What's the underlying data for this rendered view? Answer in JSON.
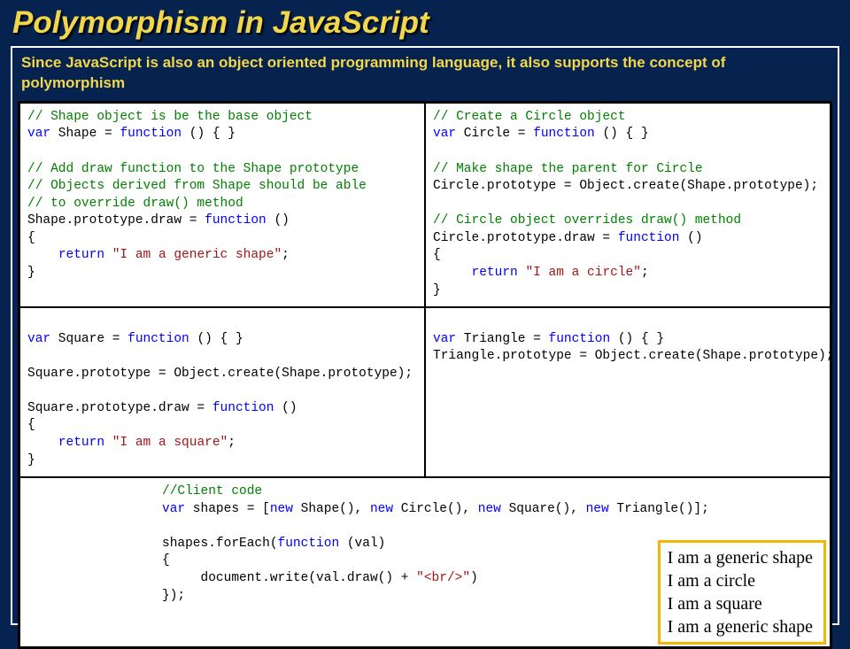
{
  "title": "Polymorphism in JavaScript",
  "subtitle": "Since JavaScript is also an object oriented programming language, it also supports the concept of polymorphism",
  "colors": {
    "background": "#062350",
    "accent": "#f2d74a",
    "frame_border": "#ffffff",
    "cell_bg": "#ffffff",
    "cell_border": "#000000",
    "comment": "#008000",
    "keyword": "#0000ff",
    "string": "#a31515",
    "output_border": "#f2b705"
  },
  "code": {
    "tl": {
      "l1": "// Shape object is be the base object",
      "l2a": "var",
      "l2b": " Shape = ",
      "l2c": "function",
      "l2d": " () { }",
      "l3": "",
      "l4": "// Add draw function to the Shape prototype",
      "l5": "// Objects derived from Shape should be able",
      "l6": "// to override draw() method",
      "l7a": "Shape.prototype.draw = ",
      "l7b": "function",
      "l7c": " ()",
      "l8": "{",
      "l9a": "    ",
      "l9b": "return",
      "l9c": " ",
      "l9d": "\"I am a generic shape\"",
      "l9e": ";",
      "l10": "}"
    },
    "tr": {
      "l1": "// Create a Circle object",
      "l2a": "var",
      "l2b": " Circle = ",
      "l2c": "function",
      "l2d": " () { }",
      "l3": "",
      "l4": "// Make shape the parent for Circle",
      "l5": "Circle.prototype = Object.create(Shape.prototype);",
      "l6": "",
      "l7": "// Circle object overrides draw() method",
      "l8a": "Circle.prototype.draw = ",
      "l8b": "function",
      "l8c": " ()",
      "l9": "{",
      "l10a": "     ",
      "l10b": "return",
      "l10c": " ",
      "l10d": "\"I am a circle\"",
      "l10e": ";",
      "l11": "}"
    },
    "bl": {
      "l0": "",
      "l1a": "var",
      "l1b": " Square = ",
      "l1c": "function",
      "l1d": " () { }",
      "l2": "",
      "l3": "Square.prototype = Object.create(Shape.prototype);",
      "l4": "",
      "l5a": "Square.prototype.draw = ",
      "l5b": "function",
      "l5c": " ()",
      "l6": "{",
      "l7a": "    ",
      "l7b": "return",
      "l7c": " ",
      "l7d": "\"I am a square\"",
      "l7e": ";",
      "l8": "}"
    },
    "br": {
      "l0": "",
      "l1a": "var",
      "l1b": " Triangle = ",
      "l1c": "function",
      "l1d": " () { }",
      "l2": "Triangle.prototype = Object.create(Shape.prototype);"
    },
    "bottom": {
      "l1": "//Client code",
      "l2a": "var",
      "l2b": " shapes = [",
      "l2c": "new",
      "l2d": " Shape(), ",
      "l2e": "new",
      "l2f": " Circle(), ",
      "l2g": "new",
      "l2h": " Square(), ",
      "l2i": "new",
      "l2j": " Triangle()];",
      "l3": "",
      "l4a": "shapes.forEach(",
      "l4b": "function",
      "l4c": " (val)",
      "l5": "{",
      "l6a": "     document.write(val.draw() + ",
      "l6b": "\"<br/>\"",
      "l6c": ")",
      "l7": "});"
    }
  },
  "output": {
    "l1": "I am a generic shape",
    "l2": "I am a circle",
    "l3": "I am a square",
    "l4": "I am a generic shape"
  }
}
